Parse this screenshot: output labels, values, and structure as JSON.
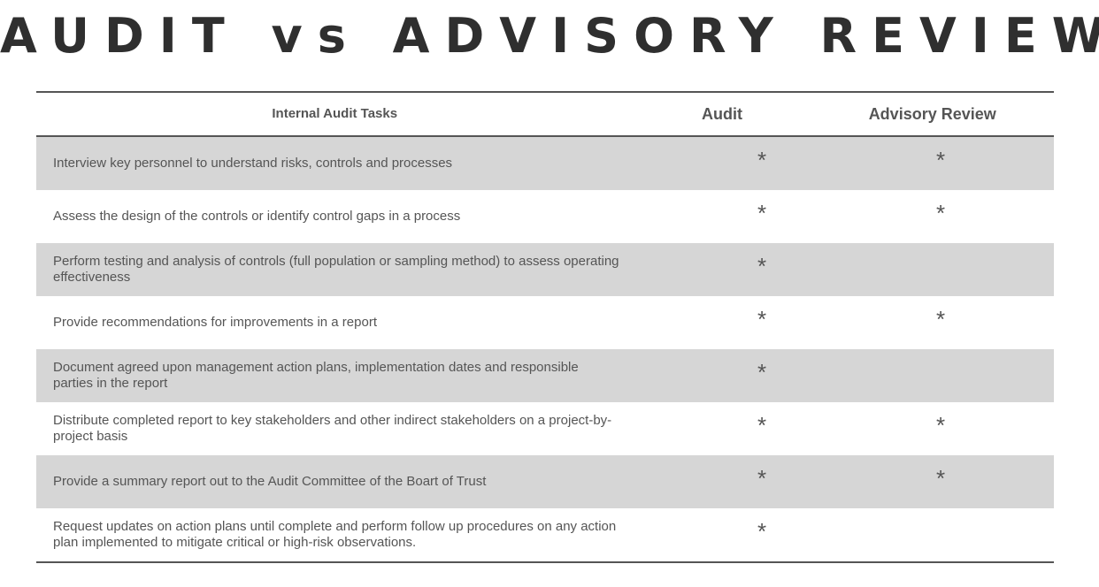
{
  "title": "AUDIT vs ADVISORY REVIEW",
  "table": {
    "headers": [
      "Internal Audit Tasks",
      "Audit",
      "Advisory Review"
    ],
    "mark_symbol": "*",
    "rows": [
      {
        "task": "Interview key personnel to understand risks, controls and processes",
        "audit": "*",
        "advisory": "*"
      },
      {
        "task": "Assess the design of the controls or identify control gaps in a process",
        "audit": "*",
        "advisory": "*"
      },
      {
        "task": "Perform testing and analysis of controls (full population or sampling method) to assess operating effectiveness",
        "audit": "*",
        "advisory": ""
      },
      {
        "task": "Provide recommendations for improvements in a report",
        "audit": "*",
        "advisory": "*"
      },
      {
        "task": "Document agreed upon management action plans, implementation dates and responsible parties in the report",
        "audit": "*",
        "advisory": ""
      },
      {
        "task": "Distribute completed report to key stakeholders and other indirect stakeholders on a project-by-project basis",
        "audit": "*",
        "advisory": "*"
      },
      {
        "task": "Provide a summary report out to the Audit Committee of the Boart of Trust",
        "audit": "*",
        "advisory": "*"
      },
      {
        "task": "Request updates on action plans until complete and perform follow up procedures on any action plan implemented to mitigate critical or high-risk observations.",
        "audit": "*",
        "advisory": ""
      }
    ]
  }
}
